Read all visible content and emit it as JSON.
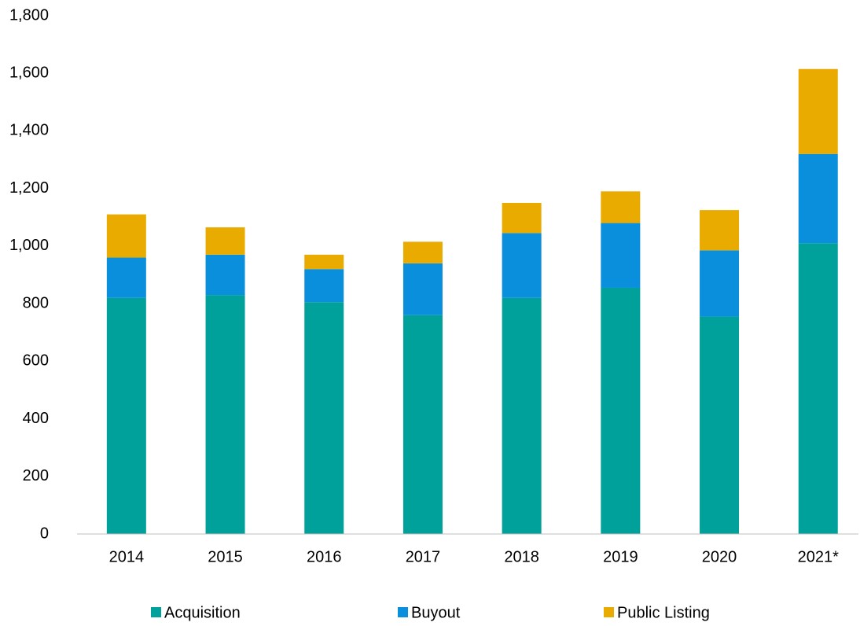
{
  "chart_data": {
    "type": "stacked_bar",
    "categories": [
      "2014",
      "2015",
      "2016",
      "2017",
      "2018",
      "2019",
      "2020",
      "2021*"
    ],
    "series": [
      {
        "name": "Acquisition",
        "color": "#00a19a",
        "values": [
          820,
          830,
          805,
          760,
          820,
          855,
          755,
          1010
        ]
      },
      {
        "name": "Buyout",
        "color": "#0a8fdc",
        "values": [
          140,
          140,
          115,
          180,
          225,
          225,
          230,
          310
        ]
      },
      {
        "name": "Public Listing",
        "color": "#eaab00",
        "values": [
          150,
          95,
          50,
          75,
          105,
          110,
          140,
          295
        ]
      }
    ],
    "ylim": [
      0,
      1800
    ],
    "yticks": [
      0,
      200,
      400,
      600,
      800,
      {
        "value": 1000,
        "label": "1,000"
      },
      {
        "value": 1200,
        "label": "1,200"
      },
      {
        "value": 1400,
        "label": "1,400"
      },
      {
        "value": 1600,
        "label": "1,600"
      },
      {
        "value": 1800,
        "label": "1,800"
      }
    ],
    "grid": false,
    "legend": "bottom"
  }
}
